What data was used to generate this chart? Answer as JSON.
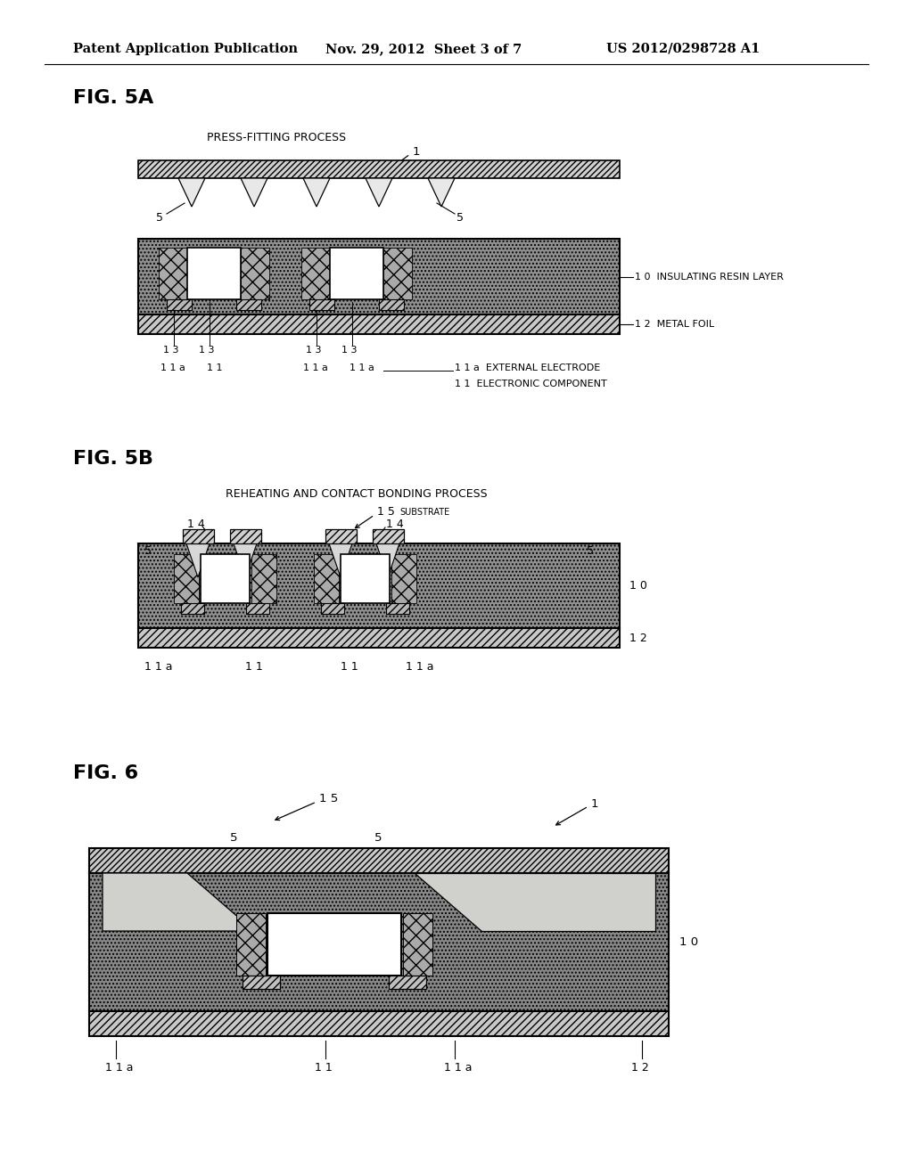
{
  "header_left": "Patent Application Publication",
  "header_mid": "Nov. 29, 2012  Sheet 3 of 7",
  "header_right": "US 2012/0298728 A1",
  "fig5a_title": "FIG. 5A",
  "fig5b_title": "FIG. 5B",
  "fig6_title": "FIG. 6",
  "process_5a": "PRESS-FITTING PROCESS",
  "process_5b": "REHEATING AND CONTACT BONDING PROCESS",
  "label_10_full": "1 0  INSULATING RESIN LAYER",
  "label_12_full": "1 2  METAL FOIL",
  "label_10": "1 0",
  "label_12": "1 2",
  "label_11a_ext": "1 1 a  EXTERNAL ELECTRODE",
  "label_11_elec": "1 1  ELECTRONIC COMPONENT",
  "bg_color": "#ffffff",
  "resin_dark": "#808080",
  "resin_medium": "#aaaaaa",
  "metal_fill": "#c8c8c8",
  "sheet_fill": "#d0d0d0",
  "comp_side_fill": "#999999",
  "pad_fill": "#b0b0b0",
  "bump_light": "#d8d8d8",
  "fig6_bump_light": "#d0d8d0"
}
